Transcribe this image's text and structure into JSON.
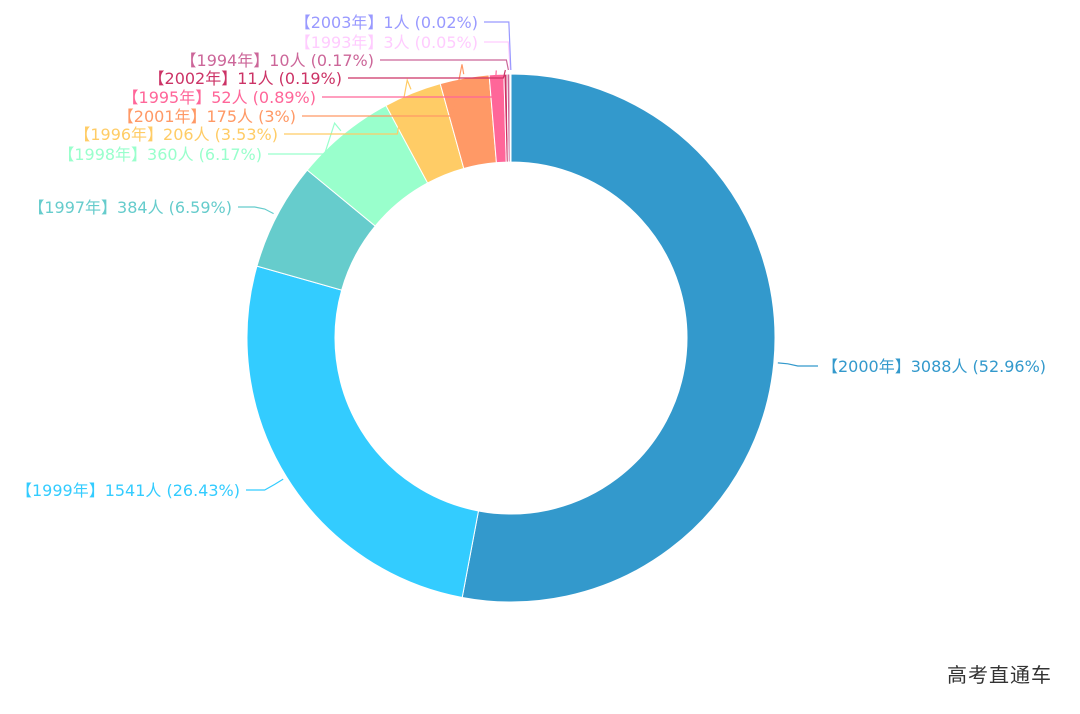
{
  "watermark": "高考直通车",
  "chart_data": {
    "type": "pie",
    "variant": "donut",
    "unit": "人",
    "slices": [
      {
        "label": "2000年",
        "value": 3088,
        "percent": "52.96%",
        "color": "#3399CC"
      },
      {
        "label": "1999年",
        "value": 1541,
        "percent": "26.43%",
        "color": "#33CCFF"
      },
      {
        "label": "1997年",
        "value": 384,
        "percent": "6.59%",
        "color": "#66CCCC"
      },
      {
        "label": "1998年",
        "value": 360,
        "percent": "6.17%",
        "color": "#99FFCC"
      },
      {
        "label": "1996年",
        "value": 206,
        "percent": "3.53%",
        "color": "#FFCC66"
      },
      {
        "label": "2001年",
        "value": 175,
        "percent": "3%",
        "color": "#FF9966"
      },
      {
        "label": "1995年",
        "value": 52,
        "percent": "0.89%",
        "color": "#FF6699"
      },
      {
        "label": "2002年",
        "value": 11,
        "percent": "0.19%",
        "color": "#CC3366"
      },
      {
        "label": "1994年",
        "value": 10,
        "percent": "0.17%",
        "color": "#CC6699"
      },
      {
        "label": "1993年",
        "value": 3,
        "percent": "0.05%",
        "color": "#FFCCFF"
      },
      {
        "label": "2003年",
        "value": 1,
        "percent": "0.02%",
        "color": "#9999FF"
      }
    ]
  }
}
